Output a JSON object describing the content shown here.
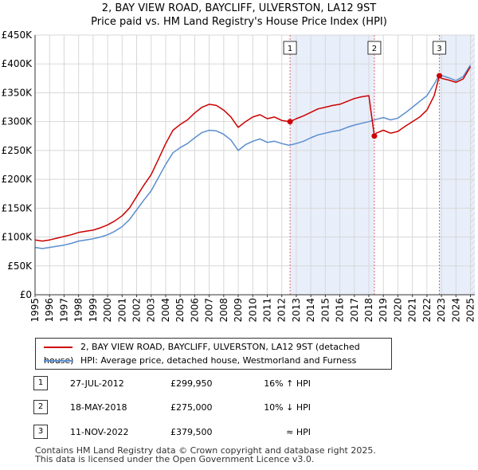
{
  "title_line1": "2, BAY VIEW ROAD, BAYCLIFF, ULVERSTON, LA12 9ST",
  "title_line2": "Price paid vs. HM Land Registry's House Price Index (HPI)",
  "colors": {
    "property": "#cc0000",
    "hpi": "#5b8ecf",
    "sale_band": "#e8eefa",
    "future_band_hatch": "#cccccc",
    "grid": "#d8d8d8",
    "sale_line": "#e06666"
  },
  "chart_data": {
    "type": "line",
    "title": "2, BAY VIEW ROAD, BAYCLIFF, ULVERSTON, LA12 9ST — Price paid vs. HM Land Registry's House Price Index (HPI)",
    "xlabel": "",
    "ylabel": "",
    "xlim": [
      1995,
      2025.3
    ],
    "ylim": [
      0,
      450000
    ],
    "y_ticks": [
      0,
      50000,
      100000,
      150000,
      200000,
      250000,
      300000,
      350000,
      400000,
      450000
    ],
    "y_tick_labels": [
      "£0",
      "£50K",
      "£100K",
      "£150K",
      "£200K",
      "£250K",
      "£300K",
      "£350K",
      "£400K",
      "£450K"
    ],
    "x_ticks": [
      1995,
      1996,
      1997,
      1998,
      1999,
      2000,
      2001,
      2002,
      2003,
      2004,
      2005,
      2006,
      2007,
      2008,
      2009,
      2010,
      2011,
      2012,
      2013,
      2014,
      2015,
      2016,
      2017,
      2018,
      2019,
      2020,
      2021,
      2022,
      2023,
      2024,
      2025
    ],
    "x_tick_labels": [
      "1995",
      "1996",
      "1997",
      "1998",
      "1999",
      "2000",
      "2001",
      "2002",
      "2003",
      "2004",
      "2005",
      "2006",
      "2007",
      "2008",
      "2009",
      "2010",
      "2011",
      "2012",
      "2013",
      "2014",
      "2015",
      "2016",
      "2017",
      "2018",
      "2019",
      "2020",
      "2021",
      "2022",
      "2023",
      "2024",
      "2025"
    ],
    "grid": true,
    "series": [
      {
        "name": "2, BAY VIEW ROAD, BAYCLIFF, ULVERSTON, LA12 9ST (detached house)",
        "x": [
          1995.0,
          1995.5,
          1996.0,
          1996.5,
          1997.0,
          1997.5,
          1998.0,
          1998.5,
          1999.0,
          1999.5,
          2000.0,
          2000.5,
          2001.0,
          2001.5,
          2002.0,
          2002.5,
          2003.0,
          2003.5,
          2004.0,
          2004.5,
          2005.0,
          2005.5,
          2006.0,
          2006.5,
          2007.0,
          2007.5,
          2008.0,
          2008.5,
          2009.0,
          2009.5,
          2010.0,
          2010.5,
          2011.0,
          2011.5,
          2012.0,
          2012.57,
          2013.0,
          2013.5,
          2014.0,
          2014.5,
          2015.0,
          2015.5,
          2016.0,
          2016.5,
          2017.0,
          2017.5,
          2018.0,
          2018.38,
          2018.5,
          2019.0,
          2019.5,
          2020.0,
          2020.5,
          2021.0,
          2021.5,
          2022.0,
          2022.5,
          2022.86,
          2023.0,
          2023.5,
          2024.0,
          2024.5,
          2025.0
        ],
        "values": [
          95000,
          93000,
          95000,
          98000,
          101000,
          104000,
          108000,
          110000,
          112000,
          116000,
          121000,
          128000,
          137000,
          150000,
          170000,
          190000,
          208000,
          235000,
          262000,
          285000,
          295000,
          303000,
          315000,
          325000,
          330000,
          328000,
          320000,
          308000,
          290000,
          300000,
          308000,
          312000,
          305000,
          308000,
          302000,
          299950,
          305000,
          310000,
          316000,
          322000,
          325000,
          328000,
          330000,
          335000,
          340000,
          343000,
          345000,
          275000,
          280000,
          285000,
          280000,
          283000,
          292000,
          300000,
          308000,
          320000,
          345000,
          379500,
          375000,
          372000,
          368000,
          374000,
          395000
        ]
      },
      {
        "name": "HPI: Average price, detached house, Westmorland and Furness",
        "x": [
          1995.0,
          1995.5,
          1996.0,
          1996.5,
          1997.0,
          1997.5,
          1998.0,
          1998.5,
          1999.0,
          1999.5,
          2000.0,
          2000.5,
          2001.0,
          2001.5,
          2002.0,
          2002.5,
          2003.0,
          2003.5,
          2004.0,
          2004.5,
          2005.0,
          2005.5,
          2006.0,
          2006.5,
          2007.0,
          2007.5,
          2008.0,
          2008.5,
          2009.0,
          2009.5,
          2010.0,
          2010.5,
          2011.0,
          2011.5,
          2012.0,
          2012.5,
          2013.0,
          2013.5,
          2014.0,
          2014.5,
          2015.0,
          2015.5,
          2016.0,
          2016.5,
          2017.0,
          2017.5,
          2018.0,
          2018.5,
          2019.0,
          2019.5,
          2020.0,
          2020.5,
          2021.0,
          2021.5,
          2022.0,
          2022.5,
          2022.86,
          2023.0,
          2023.5,
          2024.0,
          2024.5,
          2025.0
        ],
        "values": [
          82000,
          80000,
          82000,
          84000,
          86000,
          89000,
          93000,
          95000,
          97000,
          100000,
          104000,
          110000,
          118000,
          130000,
          147000,
          164000,
          180000,
          203000,
          226000,
          246000,
          255000,
          262000,
          272000,
          281000,
          285000,
          284000,
          278000,
          268000,
          250000,
          260000,
          266000,
          270000,
          264000,
          266000,
          262000,
          259000,
          262000,
          266000,
          272000,
          277000,
          280000,
          283000,
          285000,
          290000,
          294000,
          297000,
          300000,
          304000,
          307000,
          303000,
          306000,
          315000,
          325000,
          335000,
          345000,
          365000,
          381000,
          380000,
          376000,
          371000,
          378000,
          398000
        ]
      }
    ],
    "sale_markers": [
      {
        "label": "1",
        "x": 2012.57,
        "value": 299950
      },
      {
        "label": "2",
        "x": 2018.38,
        "value": 275000
      },
      {
        "label": "3",
        "x": 2022.86,
        "value": 379500
      }
    ],
    "highlight_bands": [
      [
        2012.57,
        2018.38
      ],
      [
        2022.86,
        2025.3
      ]
    ],
    "future_from": 2025.0
  },
  "legend": {
    "property_label": "2, BAY VIEW ROAD, BAYCLIFF, ULVERSTON, LA12 9ST (detached house)",
    "hpi_label": "HPI: Average price, detached house, Westmorland and Furness"
  },
  "sales": [
    {
      "num": "1",
      "date": "27-JUL-2012",
      "price": "£299,950",
      "relation": "16% ↑ HPI"
    },
    {
      "num": "2",
      "date": "18-MAY-2018",
      "price": "£275,000",
      "relation": "10% ↓ HPI"
    },
    {
      "num": "3",
      "date": "11-NOV-2022",
      "price": "£379,500",
      "relation": "≈ HPI"
    }
  ],
  "footer_line1": "Contains HM Land Registry data © Crown copyright and database right 2025.",
  "footer_line2": "This data is licensed under the Open Government Licence v3.0."
}
